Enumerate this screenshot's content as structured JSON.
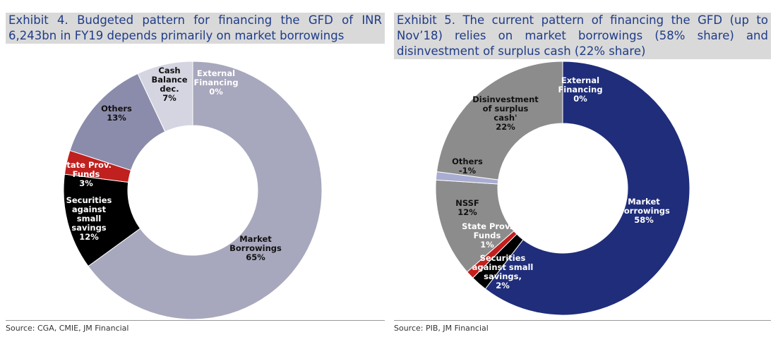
{
  "chart_data": [
    {
      "type": "donut",
      "title": "Exhibit 4. Budgeted pattern for financing the GFD of INR 6,243bn in FY19 depends primarily on market borrowings",
      "categories": [
        "External\nFinancing",
        "Market\nBorrowings",
        "Securities\nagainst\nsmall\nsavings",
        "State Prov.\nFunds",
        "Others",
        "Cash\nBalance\ndec."
      ],
      "values": [
        0,
        65,
        12,
        3,
        13,
        7
      ],
      "value_labels": [
        "0%",
        "65%",
        "12%",
        "3%",
        "13%",
        "7%"
      ],
      "colors": [
        "#1f2f8a",
        "#a7a7bd",
        "#000000",
        "#c0201e",
        "#8b8bab",
        "#d5d5e2"
      ],
      "source": "Source: CGA, CMIE, JM Financial"
    },
    {
      "type": "donut",
      "title": "Exhibit 5. The current pattern of financing the GFD (up to Nov’18) relies on market borrowings (58% share) and disinvestment of surplus cash (22% share)",
      "categories": [
        "External\nFinancing",
        "Market\nBorrowings",
        "Securities\nagainst small\nsavings,",
        "State Prov.\nFunds",
        "NSSF",
        "Others",
        "Disinvestment\nof surplus\ncash'"
      ],
      "values": [
        0,
        58,
        2,
        1,
        12,
        -1,
        22
      ],
      "value_labels": [
        "0%",
        "58%",
        "2%",
        "1%",
        "12%",
        "-1%",
        "22%"
      ],
      "colors": [
        "#e6e6e6",
        "#1f2d7a",
        "#000000",
        "#c0201e",
        "#8c8c8c",
        "#a9add2",
        "#8c8c8c"
      ],
      "source": "Source: PIB, JM Financial"
    }
  ]
}
